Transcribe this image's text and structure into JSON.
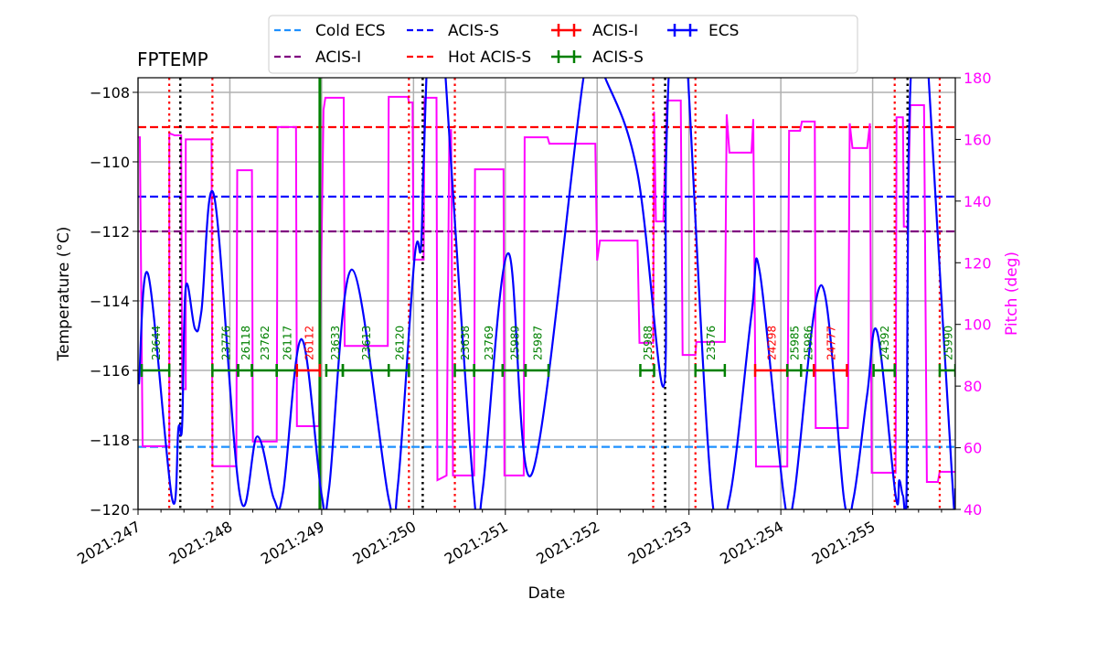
{
  "chart_data": {
    "type": "line",
    "title": "FPTEMP",
    "xlabel": "Date",
    "ylabel": "Temperature (°C)",
    "ylabel_right": "Pitch (deg)",
    "xlim": [
      247.0,
      255.9
    ],
    "ylim": [
      -120,
      -107.58
    ],
    "ylim_right": [
      40,
      180
    ],
    "x_ticks": [
      247,
      248,
      249,
      250,
      251,
      252,
      253,
      254,
      255
    ],
    "x_tick_labels": [
      "2021:247",
      "2021:248",
      "2021:249",
      "2021:250",
      "2021:251",
      "2021:252",
      "2021:253",
      "2021:254",
      "2021:255"
    ],
    "y_ticks": [
      -120,
      -118,
      -116,
      -114,
      -112,
      -110,
      -108
    ],
    "y_tick_labels": [
      "−120",
      "−118",
      "−116",
      "−114",
      "−112",
      "−110",
      "−108"
    ],
    "y_ticks_right": [
      40,
      60,
      80,
      100,
      120,
      140,
      160,
      180
    ],
    "y_tick_labels_right": [
      "40",
      "60",
      "80",
      "100",
      "120",
      "140",
      "160",
      "180"
    ],
    "grid": true,
    "legend_placement": "top-center",
    "colors": {
      "ecs": "#0000ff",
      "pitch": "#ff00ff",
      "cold_ecs": "#1e90ff",
      "acis_s_limit": "#0000ff",
      "acis_i_limit": "#800080",
      "hot_acis_s_limit": "#ff0000",
      "acis_i_obs": "#ff0000",
      "acis_s_obs": "#008000",
      "grid": "#b0b0b0"
    },
    "legend": [
      {
        "label": "Cold ECS",
        "style": "dashed",
        "color": "#1e90ff"
      },
      {
        "label": "ACIS-I",
        "style": "dashed",
        "color": "#800080"
      },
      {
        "label": "ACIS-S",
        "style": "dashed",
        "color": "#0000ff"
      },
      {
        "label": "Hot ACIS-S",
        "style": "dashed",
        "color": "#ff0000"
      },
      {
        "label": "ACIS-I",
        "style": "errorbar",
        "color": "#ff0000"
      },
      {
        "label": "ACIS-S",
        "style": "errorbar",
        "color": "#008000"
      },
      {
        "label": "ECS",
        "style": "errorbar",
        "color": "#0000ff"
      }
    ],
    "limit_lines": [
      {
        "name": "Cold ECS",
        "value": -118.2,
        "color": "#1e90ff"
      },
      {
        "name": "ACIS-I",
        "value": -112.0,
        "color": "#800080"
      },
      {
        "name": "ACIS-S",
        "value": -111.0,
        "color": "#0000ff"
      },
      {
        "name": "Hot ACIS-S",
        "value": -109.0,
        "color": "#ff0000"
      }
    ],
    "red_dotted_lines": [
      247.34,
      247.81,
      249.95,
      250.45,
      252.61,
      253.07,
      255.24,
      255.73
    ],
    "black_dotted_lines": [
      247.46,
      250.1,
      252.74,
      255.38
    ],
    "green_solid_lines": [
      248.98
    ],
    "observations": [
      {
        "obsid": "23644",
        "instrument": "ACIS-S",
        "start": 247.04,
        "stop": 247.34
      },
      {
        "obsid": "23776",
        "instrument": "ACIS-S",
        "start": 247.81,
        "stop": 248.09
      },
      {
        "obsid": "26118",
        "instrument": "ACIS-S",
        "start": 248.09,
        "stop": 248.24
      },
      {
        "obsid": "23762",
        "instrument": "ACIS-S",
        "start": 248.24,
        "stop": 248.51
      },
      {
        "obsid": "26117",
        "instrument": "ACIS-S",
        "start": 248.51,
        "stop": 248.73
      },
      {
        "obsid": "26112",
        "instrument": "ACIS-I",
        "start": 248.73,
        "stop": 248.98
      },
      {
        "obsid": "23633",
        "instrument": "ACIS-S",
        "start": 249.05,
        "stop": 249.23
      },
      {
        "obsid": "23613",
        "instrument": "ACIS-S",
        "start": 249.23,
        "stop": 249.73
      },
      {
        "obsid": "26120",
        "instrument": "ACIS-S",
        "start": 249.73,
        "stop": 249.95
      },
      {
        "obsid": "23638",
        "instrument": "ACIS-S",
        "start": 250.45,
        "stop": 250.66
      },
      {
        "obsid": "23769",
        "instrument": "ACIS-S",
        "start": 250.66,
        "stop": 250.97
      },
      {
        "obsid": "25989",
        "instrument": "ACIS-S",
        "start": 250.97,
        "stop": 251.22
      },
      {
        "obsid": "25987",
        "instrument": "ACIS-S",
        "start": 251.22,
        "stop": 251.47
      },
      {
        "obsid": "25988",
        "instrument": "ACIS-S",
        "start": 252.47,
        "stop": 252.62
      },
      {
        "obsid": "23576",
        "instrument": "ACIS-S",
        "start": 253.07,
        "stop": 253.39
      },
      {
        "obsid": "24298",
        "instrument": "ACIS-I",
        "start": 253.72,
        "stop": 254.07
      },
      {
        "obsid": "25985",
        "instrument": "ACIS-S",
        "start": 254.07,
        "stop": 254.22
      },
      {
        "obsid": "25986",
        "instrument": "ACIS-S",
        "start": 254.22,
        "stop": 254.36
      },
      {
        "obsid": "24777",
        "instrument": "ACIS-I",
        "start": 254.36,
        "stop": 254.72
      },
      {
        "obsid": "24392",
        "instrument": "ACIS-S",
        "start": 255.01,
        "stop": 255.24
      },
      {
        "obsid": "25990",
        "instrument": "ACIS-S",
        "start": 255.73,
        "stop": 255.9
      }
    ],
    "obs_level": -116.0,
    "series": [
      {
        "name": "ECS",
        "axis": "left",
        "points": [
          [
            247.01,
            -116.4
          ],
          [
            247.11,
            -113.24
          ],
          [
            247.37,
            -119.68
          ],
          [
            247.44,
            -117.66
          ],
          [
            247.48,
            -117.6
          ],
          [
            247.52,
            -113.6
          ],
          [
            247.62,
            -114.8
          ],
          [
            247.69,
            -114.3
          ],
          [
            247.83,
            -111.0
          ],
          [
            248.11,
            -119.6
          ],
          [
            248.3,
            -117.9
          ],
          [
            248.48,
            -119.7
          ],
          [
            248.58,
            -119.5
          ],
          [
            248.78,
            -115.1
          ],
          [
            249.0,
            -119.6
          ],
          [
            249.08,
            -119.4
          ],
          [
            249.33,
            -113.1
          ],
          [
            249.73,
            -119.7
          ],
          [
            249.83,
            -119.3
          ],
          [
            250.01,
            -112.8
          ],
          [
            250.08,
            -112.5
          ],
          [
            250.11,
            -110.0
          ],
          [
            250.18,
            -106.0
          ],
          [
            250.33,
            -106.0
          ],
          [
            250.35,
            -107.6
          ],
          [
            250.66,
            -119.63
          ],
          [
            250.75,
            -119.5
          ],
          [
            251.03,
            -112.63
          ],
          [
            251.29,
            -118.97
          ],
          [
            251.85,
            -107.6
          ],
          [
            251.97,
            -107.2
          ],
          [
            252.09,
            -107.6
          ],
          [
            252.44,
            -110.34
          ],
          [
            252.72,
            -116.47
          ],
          [
            252.75,
            -110.0
          ],
          [
            252.82,
            -106.0
          ],
          [
            252.95,
            -106.0
          ],
          [
            252.99,
            -107.6
          ],
          [
            253.25,
            -119.63
          ],
          [
            253.44,
            -119.7
          ],
          [
            253.68,
            -114.4
          ],
          [
            253.77,
            -113.16
          ],
          [
            254.04,
            -119.76
          ],
          [
            254.14,
            -119.7
          ],
          [
            254.44,
            -113.55
          ],
          [
            254.69,
            -119.74
          ],
          [
            254.79,
            -119.7
          ],
          [
            254.94,
            -116.7
          ],
          [
            255.05,
            -114.9
          ],
          [
            255.25,
            -119.6
          ],
          [
            255.29,
            -119.16
          ],
          [
            255.33,
            -119.6
          ],
          [
            255.37,
            -119.37
          ],
          [
            255.39,
            -110.0
          ],
          [
            255.46,
            -106.0
          ],
          [
            255.58,
            -106.0
          ],
          [
            255.61,
            -107.6
          ],
          [
            255.88,
            -119.74
          ],
          [
            255.9,
            -119.4
          ]
        ]
      },
      {
        "name": "Pitch",
        "axis": "right",
        "points": [
          [
            247.0,
            160.7
          ],
          [
            247.02,
            160.7
          ],
          [
            247.05,
            60.5
          ],
          [
            247.34,
            60.5
          ],
          [
            247.34,
            162
          ],
          [
            247.4,
            161.3
          ],
          [
            247.47,
            161.3
          ],
          [
            247.48,
            79
          ],
          [
            247.52,
            79
          ],
          [
            247.52,
            160
          ],
          [
            247.8,
            160
          ],
          [
            247.81,
            54
          ],
          [
            248.07,
            54
          ],
          [
            248.08,
            150
          ],
          [
            248.24,
            150
          ],
          [
            248.25,
            62
          ],
          [
            248.51,
            62
          ],
          [
            248.52,
            164
          ],
          [
            248.72,
            164
          ],
          [
            248.73,
            67
          ],
          [
            248.97,
            67
          ],
          [
            249.02,
            169.6
          ],
          [
            249.04,
            173.5
          ],
          [
            249.24,
            173.5
          ],
          [
            249.25,
            93
          ],
          [
            249.72,
            93
          ],
          [
            249.73,
            173.8
          ],
          [
            249.94,
            173.8
          ],
          [
            249.95,
            172
          ],
          [
            249.99,
            172
          ],
          [
            250.0,
            121
          ],
          [
            250.11,
            121
          ],
          [
            250.12,
            173.5
          ],
          [
            250.25,
            173.5
          ],
          [
            250.26,
            49.5
          ],
          [
            250.36,
            51
          ],
          [
            250.39,
            163
          ],
          [
            250.41,
            163
          ],
          [
            250.43,
            51
          ],
          [
            250.66,
            51
          ],
          [
            250.67,
            150.3
          ],
          [
            250.98,
            150.3
          ],
          [
            250.99,
            51
          ],
          [
            251.2,
            51
          ],
          [
            251.21,
            160.7
          ],
          [
            251.46,
            160.7
          ],
          [
            251.48,
            158.6
          ],
          [
            251.98,
            158.6
          ],
          [
            252.0,
            120.7
          ],
          [
            252.03,
            127.2
          ],
          [
            252.44,
            127.2
          ],
          [
            252.46,
            94
          ],
          [
            252.61,
            94
          ],
          [
            252.62,
            169
          ],
          [
            252.64,
            133.4
          ],
          [
            252.72,
            133.4
          ],
          [
            252.76,
            172.6
          ],
          [
            252.91,
            172.6
          ],
          [
            252.93,
            90.1
          ],
          [
            253.07,
            90.1
          ],
          [
            253.08,
            94.3
          ],
          [
            253.39,
            94.3
          ],
          [
            253.41,
            168.1
          ],
          [
            253.44,
            155.7
          ],
          [
            253.68,
            155.7
          ],
          [
            253.7,
            166.6
          ],
          [
            253.73,
            53.9
          ],
          [
            254.07,
            53.9
          ],
          [
            254.09,
            162.8
          ],
          [
            254.21,
            162.8
          ],
          [
            254.23,
            165.8
          ],
          [
            254.37,
            165.8
          ],
          [
            254.38,
            66.4
          ],
          [
            254.73,
            66.4
          ],
          [
            254.75,
            165.2
          ],
          [
            254.78,
            157.2
          ],
          [
            254.94,
            157.2
          ],
          [
            254.97,
            165.2
          ],
          [
            254.99,
            51.9
          ],
          [
            255.25,
            51.9
          ],
          [
            255.26,
            167.2
          ],
          [
            255.33,
            167.2
          ],
          [
            255.34,
            131.7
          ],
          [
            255.38,
            131.7
          ],
          [
            255.41,
            171.1
          ],
          [
            255.56,
            171.1
          ],
          [
            255.59,
            48.9
          ],
          [
            255.71,
            48.9
          ],
          [
            255.73,
            52.2
          ],
          [
            255.9,
            52.2
          ]
        ]
      }
    ]
  }
}
